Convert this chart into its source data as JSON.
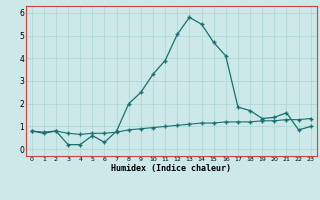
{
  "line1_x": [
    0,
    1,
    2,
    3,
    4,
    5,
    6,
    7,
    8,
    9,
    10,
    11,
    12,
    13,
    14,
    15,
    16,
    17,
    18,
    19,
    20,
    21,
    22,
    23
  ],
  "line1_y": [
    0.8,
    0.7,
    0.8,
    0.2,
    0.2,
    0.6,
    0.3,
    0.8,
    2.0,
    2.5,
    3.3,
    3.9,
    5.05,
    5.8,
    5.5,
    4.7,
    4.1,
    1.85,
    1.7,
    1.35,
    1.4,
    1.6,
    0.85,
    1.0
  ],
  "line2_x": [
    0,
    1,
    2,
    3,
    4,
    5,
    6,
    7,
    8,
    9,
    10,
    11,
    12,
    13,
    14,
    15,
    16,
    17,
    18,
    19,
    20,
    21,
    22,
    23
  ],
  "line2_y": [
    0.8,
    0.75,
    0.8,
    0.7,
    0.65,
    0.7,
    0.7,
    0.75,
    0.85,
    0.9,
    0.95,
    1.0,
    1.05,
    1.1,
    1.15,
    1.15,
    1.2,
    1.2,
    1.2,
    1.25,
    1.25,
    1.3,
    1.3,
    1.35
  ],
  "line_color": "#1a7070",
  "bg_color": "#cce8e8",
  "grid_color": "#aad4d4",
  "spine_color": "#cc4444",
  "xlabel": "Humidex (Indice chaleur)",
  "xlim": [
    -0.5,
    23.5
  ],
  "ylim": [
    -0.3,
    6.3
  ],
  "yticks": [
    0,
    1,
    2,
    3,
    4,
    5,
    6
  ],
  "xticks": [
    0,
    1,
    2,
    3,
    4,
    5,
    6,
    7,
    8,
    9,
    10,
    11,
    12,
    13,
    14,
    15,
    16,
    17,
    18,
    19,
    20,
    21,
    22,
    23
  ]
}
